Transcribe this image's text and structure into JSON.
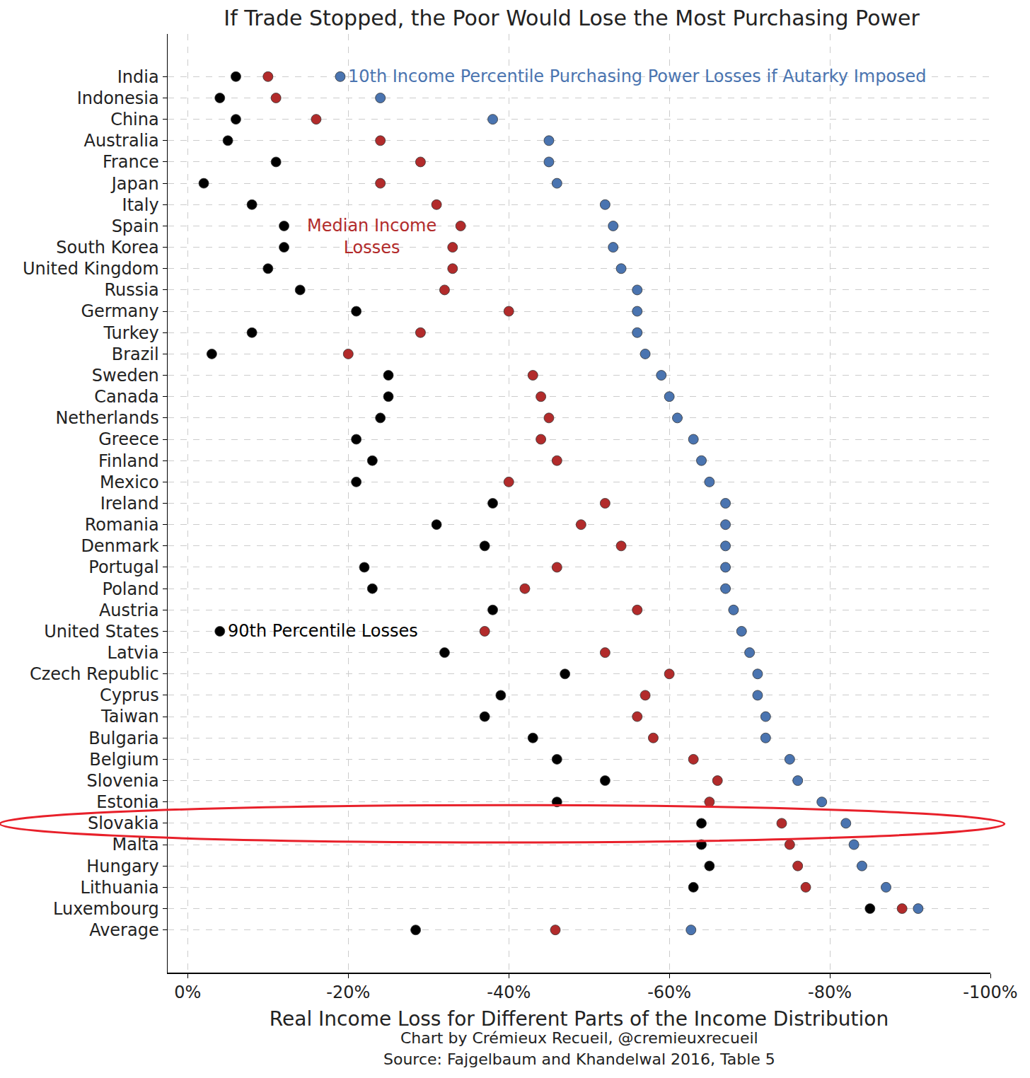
{
  "chart_data": {
    "type": "scatter",
    "marker": "circle",
    "title": "If Trade Stopped, the Poor Would Lose the Most Purchasing Power",
    "x_label": "Real Income Loss for Different Parts of the Income Distribution",
    "caption": [
      "Chart by Crémieux Recueil, @cremieuxrecueil",
      "Source: Fajgelbaum and Khandelwal 2016, Table 5"
    ],
    "categories": [
      "India",
      "Indonesia",
      "China",
      "Australia",
      "France",
      "Japan",
      "Italy",
      "Spain",
      "South Korea",
      "United Kingdom",
      "Russia",
      "Germany",
      "Turkey",
      "Brazil",
      "Sweden",
      "Canada",
      "Netherlands",
      "Greece",
      "Finland",
      "Mexico",
      "Ireland",
      "Romania",
      "Denmark",
      "Portugal",
      "Poland",
      "Austria",
      "United States",
      "Latvia",
      "Czech Republic",
      "Cyprus",
      "Taiwan",
      "Bulgaria",
      "Belgium",
      "Slovenia",
      "Estonia",
      "Slovakia",
      "Malta",
      "Hungary",
      "Lithuania",
      "Luxembourg",
      "Average"
    ],
    "series": [
      {
        "name": "90th Percentile Losses",
        "color": "#000000",
        "values": [
          -6,
          -4,
          -6,
          -5,
          -11,
          -2,
          -8,
          -12,
          -12,
          -10,
          -14,
          -21,
          -8,
          -3,
          -25,
          -25,
          -24,
          -21,
          -23,
          -21,
          -38,
          -31,
          -37,
          -22,
          -23,
          -38,
          -4,
          -32,
          -47,
          -39,
          -37,
          -43,
          -46,
          -52,
          -46,
          -64,
          -64,
          -65,
          -63,
          -85,
          -28.4
        ]
      },
      {
        "name": "Median Income\nLosses",
        "color": "#b22b2b",
        "values": [
          -10,
          -11,
          -16,
          -24,
          -29,
          -24,
          -31,
          -34,
          -33,
          -33,
          -32,
          -40,
          -29,
          -20,
          -43,
          -44,
          -45,
          -44,
          -46,
          -40,
          -52,
          -49,
          -54,
          -46,
          -42,
          -56,
          -37,
          -52,
          -60,
          -57,
          -56,
          -58,
          -63,
          -66,
          -65,
          -74,
          -75,
          -76,
          -77,
          -89,
          -45.8
        ]
      },
      {
        "name": "10th Income Percentile Purchasing Power Losses if Autarky Imposed",
        "color": "#4a74b0",
        "values": [
          -19,
          -24,
          -38,
          -45,
          -45,
          -46,
          -52,
          -53,
          -53,
          -54,
          -56,
          -56,
          -56,
          -57,
          -59,
          -60,
          -61,
          -63,
          -64,
          -65,
          -67,
          -67,
          -67,
          -67,
          -67,
          -68,
          -69,
          -70,
          -71,
          -71,
          -72,
          -72,
          -75,
          -76,
          -79,
          -82,
          -83,
          -84,
          -87,
          -91,
          -62.7
        ]
      }
    ],
    "xlim": [
      2.5,
      -100
    ],
    "xticks": [
      {
        "value": 0,
        "label": "0%"
      },
      {
        "value": -20,
        "label": "-20%"
      },
      {
        "value": -40,
        "label": "-40%"
      },
      {
        "value": -60,
        "label": "-60%"
      },
      {
        "value": -80,
        "label": "-80%"
      },
      {
        "value": -100,
        "label": "-100%"
      }
    ],
    "grid": true
  }
}
